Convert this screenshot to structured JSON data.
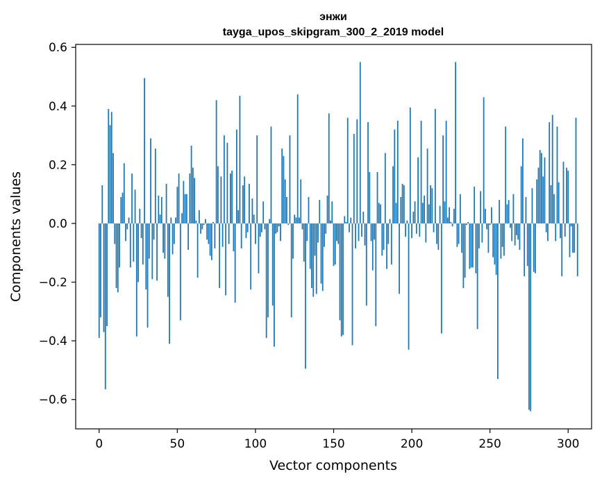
{
  "chart_data": {
    "type": "bar",
    "title": "энжи",
    "subtitle": "tayga_upos_skipgram_300_2_2019 model",
    "xlabel": "Vector components",
    "ylabel": "Components values",
    "xlim": [
      -15,
      315
    ],
    "ylim": [
      -0.7,
      0.61
    ],
    "xticks": [
      0,
      50,
      100,
      150,
      200,
      250,
      300
    ],
    "yticks": [
      -0.6,
      -0.4,
      -0.2,
      0.0,
      0.2,
      0.4,
      0.6
    ],
    "ytick_labels": [
      "−0.6",
      "−0.4",
      "−0.2",
      "0.0",
      "0.2",
      "0.4",
      "0.6"
    ],
    "xtick_labels": [
      "0",
      "50",
      "100",
      "150",
      "200",
      "250",
      "300"
    ],
    "bar_color": "#1f77b4",
    "grid": false,
    "values": [
      -0.39,
      -0.32,
      0.13,
      -0.37,
      -0.565,
      -0.35,
      0.39,
      0.335,
      0.38,
      0.24,
      -0.07,
      -0.22,
      -0.235,
      -0.15,
      0.09,
      0.105,
      0.205,
      -0.06,
      -0.02,
      0.02,
      -0.15,
      0.17,
      -0.13,
      0.115,
      -0.385,
      -0.2,
      0.05,
      -0.05,
      -0.14,
      0.495,
      -0.225,
      -0.355,
      -0.12,
      0.29,
      -0.19,
      -0.055,
      0.255,
      -0.195,
      0.095,
      0.03,
      0.09,
      -0.1,
      -0.12,
      0.135,
      -0.25,
      -0.41,
      0.02,
      -0.105,
      -0.07,
      0.02,
      0.125,
      0.17,
      -0.33,
      0.035,
      0.145,
      0.1,
      0.1,
      -0.09,
      0.17,
      0.265,
      0.19,
      0.155,
      0.01,
      -0.185,
      0.045,
      -0.035,
      -0.02,
      -0.005,
      0.015,
      -0.055,
      -0.07,
      -0.11,
      -0.125,
      0.005,
      -0.085,
      0.42,
      0.195,
      -0.22,
      0.16,
      -0.08,
      0.3,
      -0.245,
      0.275,
      -0.07,
      0.17,
      0.18,
      -0.095,
      -0.27,
      0.32,
      0.045,
      0.435,
      -0.085,
      0.13,
      0.16,
      -0.05,
      -0.03,
      0.135,
      -0.225,
      0.085,
      0.03,
      -0.07,
      0.3,
      -0.17,
      -0.045,
      -0.03,
      0.075,
      -0.02,
      -0.39,
      -0.32,
      0.015,
      0.33,
      -0.28,
      -0.42,
      -0.035,
      -0.03,
      -0.01,
      -0.06,
      0.255,
      0.23,
      0.15,
      0.09,
      -0.005,
      0.3,
      -0.32,
      -0.12,
      0.03,
      0.02,
      0.44,
      0.02,
      0.15,
      -0.02,
      -0.13,
      -0.495,
      -0.06,
      0.09,
      -0.155,
      -0.22,
      -0.25,
      -0.11,
      -0.24,
      -0.065,
      0.08,
      -0.205,
      -0.23,
      -0.08,
      -0.035,
      0.095,
      0.375,
      0.01,
      0.075,
      -0.145,
      -0.14,
      -0.06,
      -0.07,
      -0.33,
      -0.385,
      -0.38,
      0.025,
      0.005,
      0.36,
      -0.03,
      0.02,
      -0.415,
      0.305,
      -0.085,
      0.355,
      -0.06,
      0.55,
      -0.045,
      0.04,
      -0.075,
      -0.28,
      0.345,
      0.175,
      -0.06,
      -0.16,
      -0.055,
      -0.35,
      0.175,
      0.07,
      0.065,
      -0.11,
      -0.09,
      0.24,
      -0.155,
      -0.07,
      0.015,
      -0.14,
      0.195,
      0.32,
      0.07,
      0.35,
      -0.24,
      0.09,
      0.135,
      0.13,
      -0.045,
      0.01,
      -0.43,
      0.395,
      -0.05,
      0.04,
      0.075,
      -0.035,
      0.225,
      -0.045,
      0.35,
      0.07,
      0.095,
      -0.065,
      0.255,
      0.065,
      0.13,
      0.12,
      -0.03,
      0.39,
      -0.07,
      -0.09,
      0.06,
      -0.375,
      0.3,
      0.075,
      0.35,
      0.02,
      0.055,
      0.005,
      -0.01,
      0.05,
      0.55,
      -0.08,
      -0.07,
      0.1,
      -0.1,
      -0.22,
      -0.185,
      -0.005,
      0.005,
      -0.155,
      -0.15,
      -0.15,
      0.125,
      -0.17,
      -0.36,
      -0.085,
      0.11,
      -0.065,
      0.43,
      0.05,
      -0.02,
      -0.1,
      -0.005,
      0.055,
      -0.115,
      -0.14,
      -0.175,
      -0.53,
      0.08,
      -0.12,
      -0.08,
      -0.11,
      0.33,
      0.065,
      0.08,
      -0.015,
      -0.06,
      0.1,
      -0.075,
      -0.04,
      -0.055,
      -0.09,
      0.195,
      0.29,
      -0.18,
      0.09,
      -0.145,
      -0.635,
      -0.64,
      0.12,
      -0.165,
      -0.17,
      0.15,
      0.19,
      0.25,
      0.24,
      0.16,
      0.225,
      -0.03,
      -0.06,
      0.345,
      0.13,
      0.37,
      0.1,
      -0.06,
      0.33,
      0.14,
      -0.05,
      -0.18,
      0.21,
      -0.045,
      0.19,
      0.18,
      -0.115,
      -0.01,
      -0.1,
      -0.1,
      0.36,
      -0.18
    ]
  }
}
